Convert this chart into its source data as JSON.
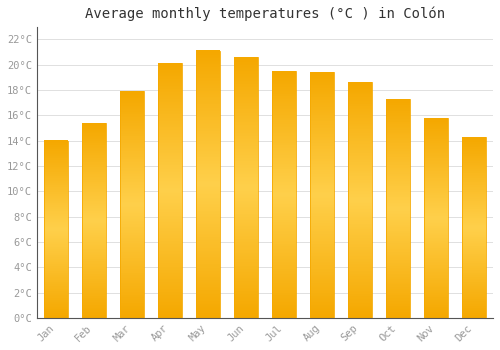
{
  "title": "Average monthly temperatures (°C ) in Colón",
  "months": [
    "Jan",
    "Feb",
    "Mar",
    "Apr",
    "May",
    "Jun",
    "Jul",
    "Aug",
    "Sep",
    "Oct",
    "Nov",
    "Dec"
  ],
  "values": [
    14.0,
    15.4,
    17.9,
    20.1,
    21.1,
    20.6,
    19.5,
    19.4,
    18.6,
    17.3,
    15.8,
    14.3
  ],
  "bar_color_center": "#FFD04B",
  "bar_color_edge": "#F5A800",
  "background_color": "#FFFFFF",
  "grid_color": "#E0E0E0",
  "ytick_labels": [
    "0°C",
    "2°C",
    "4°C",
    "6°C",
    "8°C",
    "10°C",
    "12°C",
    "14°C",
    "16°C",
    "18°C",
    "20°C",
    "22°C"
  ],
  "ytick_values": [
    0,
    2,
    4,
    6,
    8,
    10,
    12,
    14,
    16,
    18,
    20,
    22
  ],
  "ylim": [
    0,
    23
  ],
  "title_fontsize": 10,
  "tick_fontsize": 7.5,
  "tick_color": "#999999",
  "spine_color": "#555555",
  "bar_width": 0.62,
  "bar_edge_linewidth": 0.6
}
